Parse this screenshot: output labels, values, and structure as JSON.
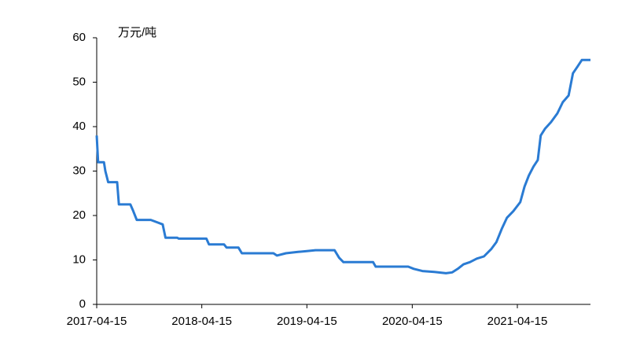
{
  "chart_data": {
    "type": "line",
    "y_label": "万元/吨",
    "color": "#2a7bd3",
    "x": [
      "2017-04-15",
      "2017-04-20",
      "2017-05-10",
      "2017-05-15",
      "2017-05-25",
      "2017-06-25",
      "2017-07-01",
      "2017-08-10",
      "2017-08-20",
      "2017-09-01",
      "2017-10-20",
      "2017-11-10",
      "2017-11-30",
      "2017-12-10",
      "2018-01-20",
      "2018-01-25",
      "2018-05-01",
      "2018-05-10",
      "2018-07-01",
      "2018-07-10",
      "2018-08-20",
      "2018-09-01",
      "2018-12-20",
      "2019-01-01",
      "2019-02-01",
      "2019-03-15",
      "2019-04-15",
      "2019-05-15",
      "2019-07-20",
      "2019-08-05",
      "2019-08-20",
      "2019-12-01",
      "2019-12-10",
      "2020-04-01",
      "2020-04-20",
      "2020-05-20",
      "2020-07-01",
      "2020-08-10",
      "2020-09-01",
      "2020-09-20",
      "2020-10-10",
      "2020-11-01",
      "2020-11-25",
      "2020-12-20",
      "2021-01-15",
      "2021-02-01",
      "2021-02-20",
      "2021-03-10",
      "2021-04-01",
      "2021-04-25",
      "2021-05-10",
      "2021-05-25",
      "2021-06-10",
      "2021-06-25",
      "2021-07-05",
      "2021-07-20",
      "2021-08-10",
      "2021-09-01",
      "2021-09-20",
      "2021-10-10",
      "2021-10-25",
      "2021-11-10",
      "2021-11-25",
      "2021-12-25"
    ],
    "values": [
      38,
      32,
      32,
      30,
      27.5,
      27.5,
      22.5,
      22.5,
      21,
      19,
      19,
      18.5,
      18,
      15,
      15,
      14.8,
      14.8,
      13.5,
      13.5,
      12.8,
      12.8,
      11.5,
      11.5,
      11,
      11.5,
      11.8,
      12,
      12.2,
      12.2,
      10.5,
      9.5,
      9.5,
      8.5,
      8.5,
      8,
      7.5,
      7.3,
      7,
      7.2,
      8,
      9,
      9.5,
      10.3,
      10.8,
      12.5,
      14,
      17,
      19.5,
      21,
      23,
      26.5,
      29,
      31,
      32.5,
      38,
      39.5,
      41,
      43,
      45.5,
      47,
      52,
      53.5,
      55,
      55
    ],
    "xlim": [
      "2017-04-15",
      "2021-12-25"
    ],
    "xticks": [
      "2017-04-15",
      "2018-04-15",
      "2019-04-15",
      "2020-04-15",
      "2021-04-15"
    ],
    "ylim": [
      0,
      60
    ],
    "yticks": [
      0,
      10,
      20,
      30,
      40,
      50,
      60
    ],
    "grid": false
  }
}
